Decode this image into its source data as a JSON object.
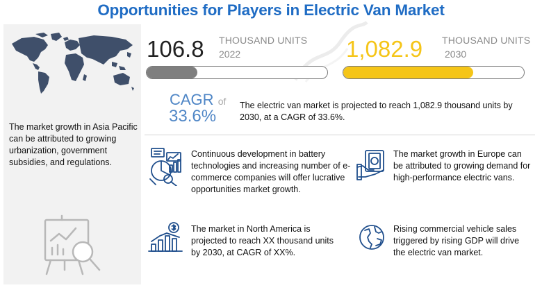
{
  "title": "Opportunities for Players in Electric Van Market",
  "left": {
    "text": "The market growth in Asia Pacific can be attributed to growing urbanization, government subsidies, and regulations."
  },
  "stats": {
    "current": {
      "value": "106.8",
      "unit": "THOUSAND UNITS",
      "year": "2022",
      "progress": 0.28
    },
    "forecast": {
      "value": "1,082.9",
      "unit": "THOUSAND UNITS",
      "year": "2030",
      "progress": 0.72
    }
  },
  "cagr": {
    "label": "CAGR",
    "of": "of",
    "value": "33.6%",
    "text": "The electric van market is projected to reach 1,082.9 thousand units by 2030, at a CAGR of 33.6%."
  },
  "features": [
    {
      "icon": "battery-analytics-icon",
      "text": "Continuous development in battery technologies and increasing number of e-commerce companies will offer lucrative opportunities market growth."
    },
    {
      "icon": "money-hand-icon",
      "text": "The market growth in Europe can be attributed to growing demand for high-performance electric vans."
    },
    {
      "icon": "growth-chart-icon",
      "text": "The market in North America is projected to reach XX thousand units by 2030, at CAGR of  XX%."
    },
    {
      "icon": "globe-icon",
      "text": "Rising commercial vehicle sales triggered by rising GDP will drive the electric van market."
    }
  ],
  "colors": {
    "title": "#1f6cc4",
    "bar_current": "#7f7f7f",
    "bar_forecast": "#f5c518",
    "cagr": "#4f86c6"
  }
}
